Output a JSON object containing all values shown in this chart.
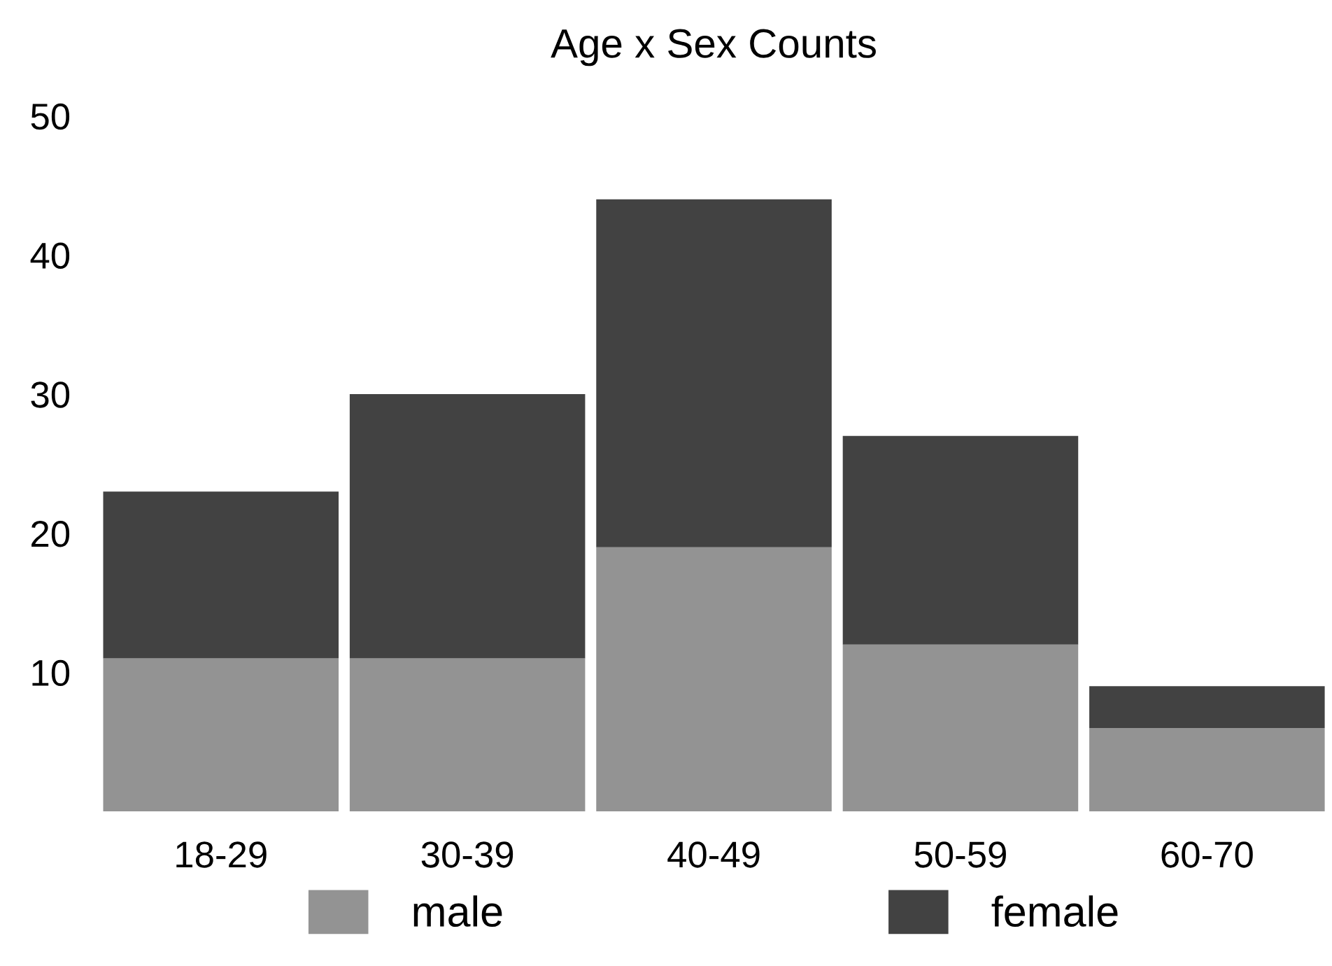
{
  "chart_data": {
    "type": "bar",
    "title": "Age x Sex Counts",
    "stacked": true,
    "categories": [
      "18-29",
      "30-39",
      "40-49",
      "50-59",
      "60-70"
    ],
    "series": [
      {
        "name": "male",
        "color": "#939393",
        "values": [
          11,
          11,
          19,
          12,
          6
        ]
      },
      {
        "name": "female",
        "color": "#424242",
        "values": [
          12,
          19,
          25,
          15,
          3
        ]
      }
    ],
    "ylim": [
      0,
      50
    ],
    "yticks": [
      10,
      20,
      30,
      40,
      50
    ],
    "grid": false,
    "legend": "bottom"
  }
}
